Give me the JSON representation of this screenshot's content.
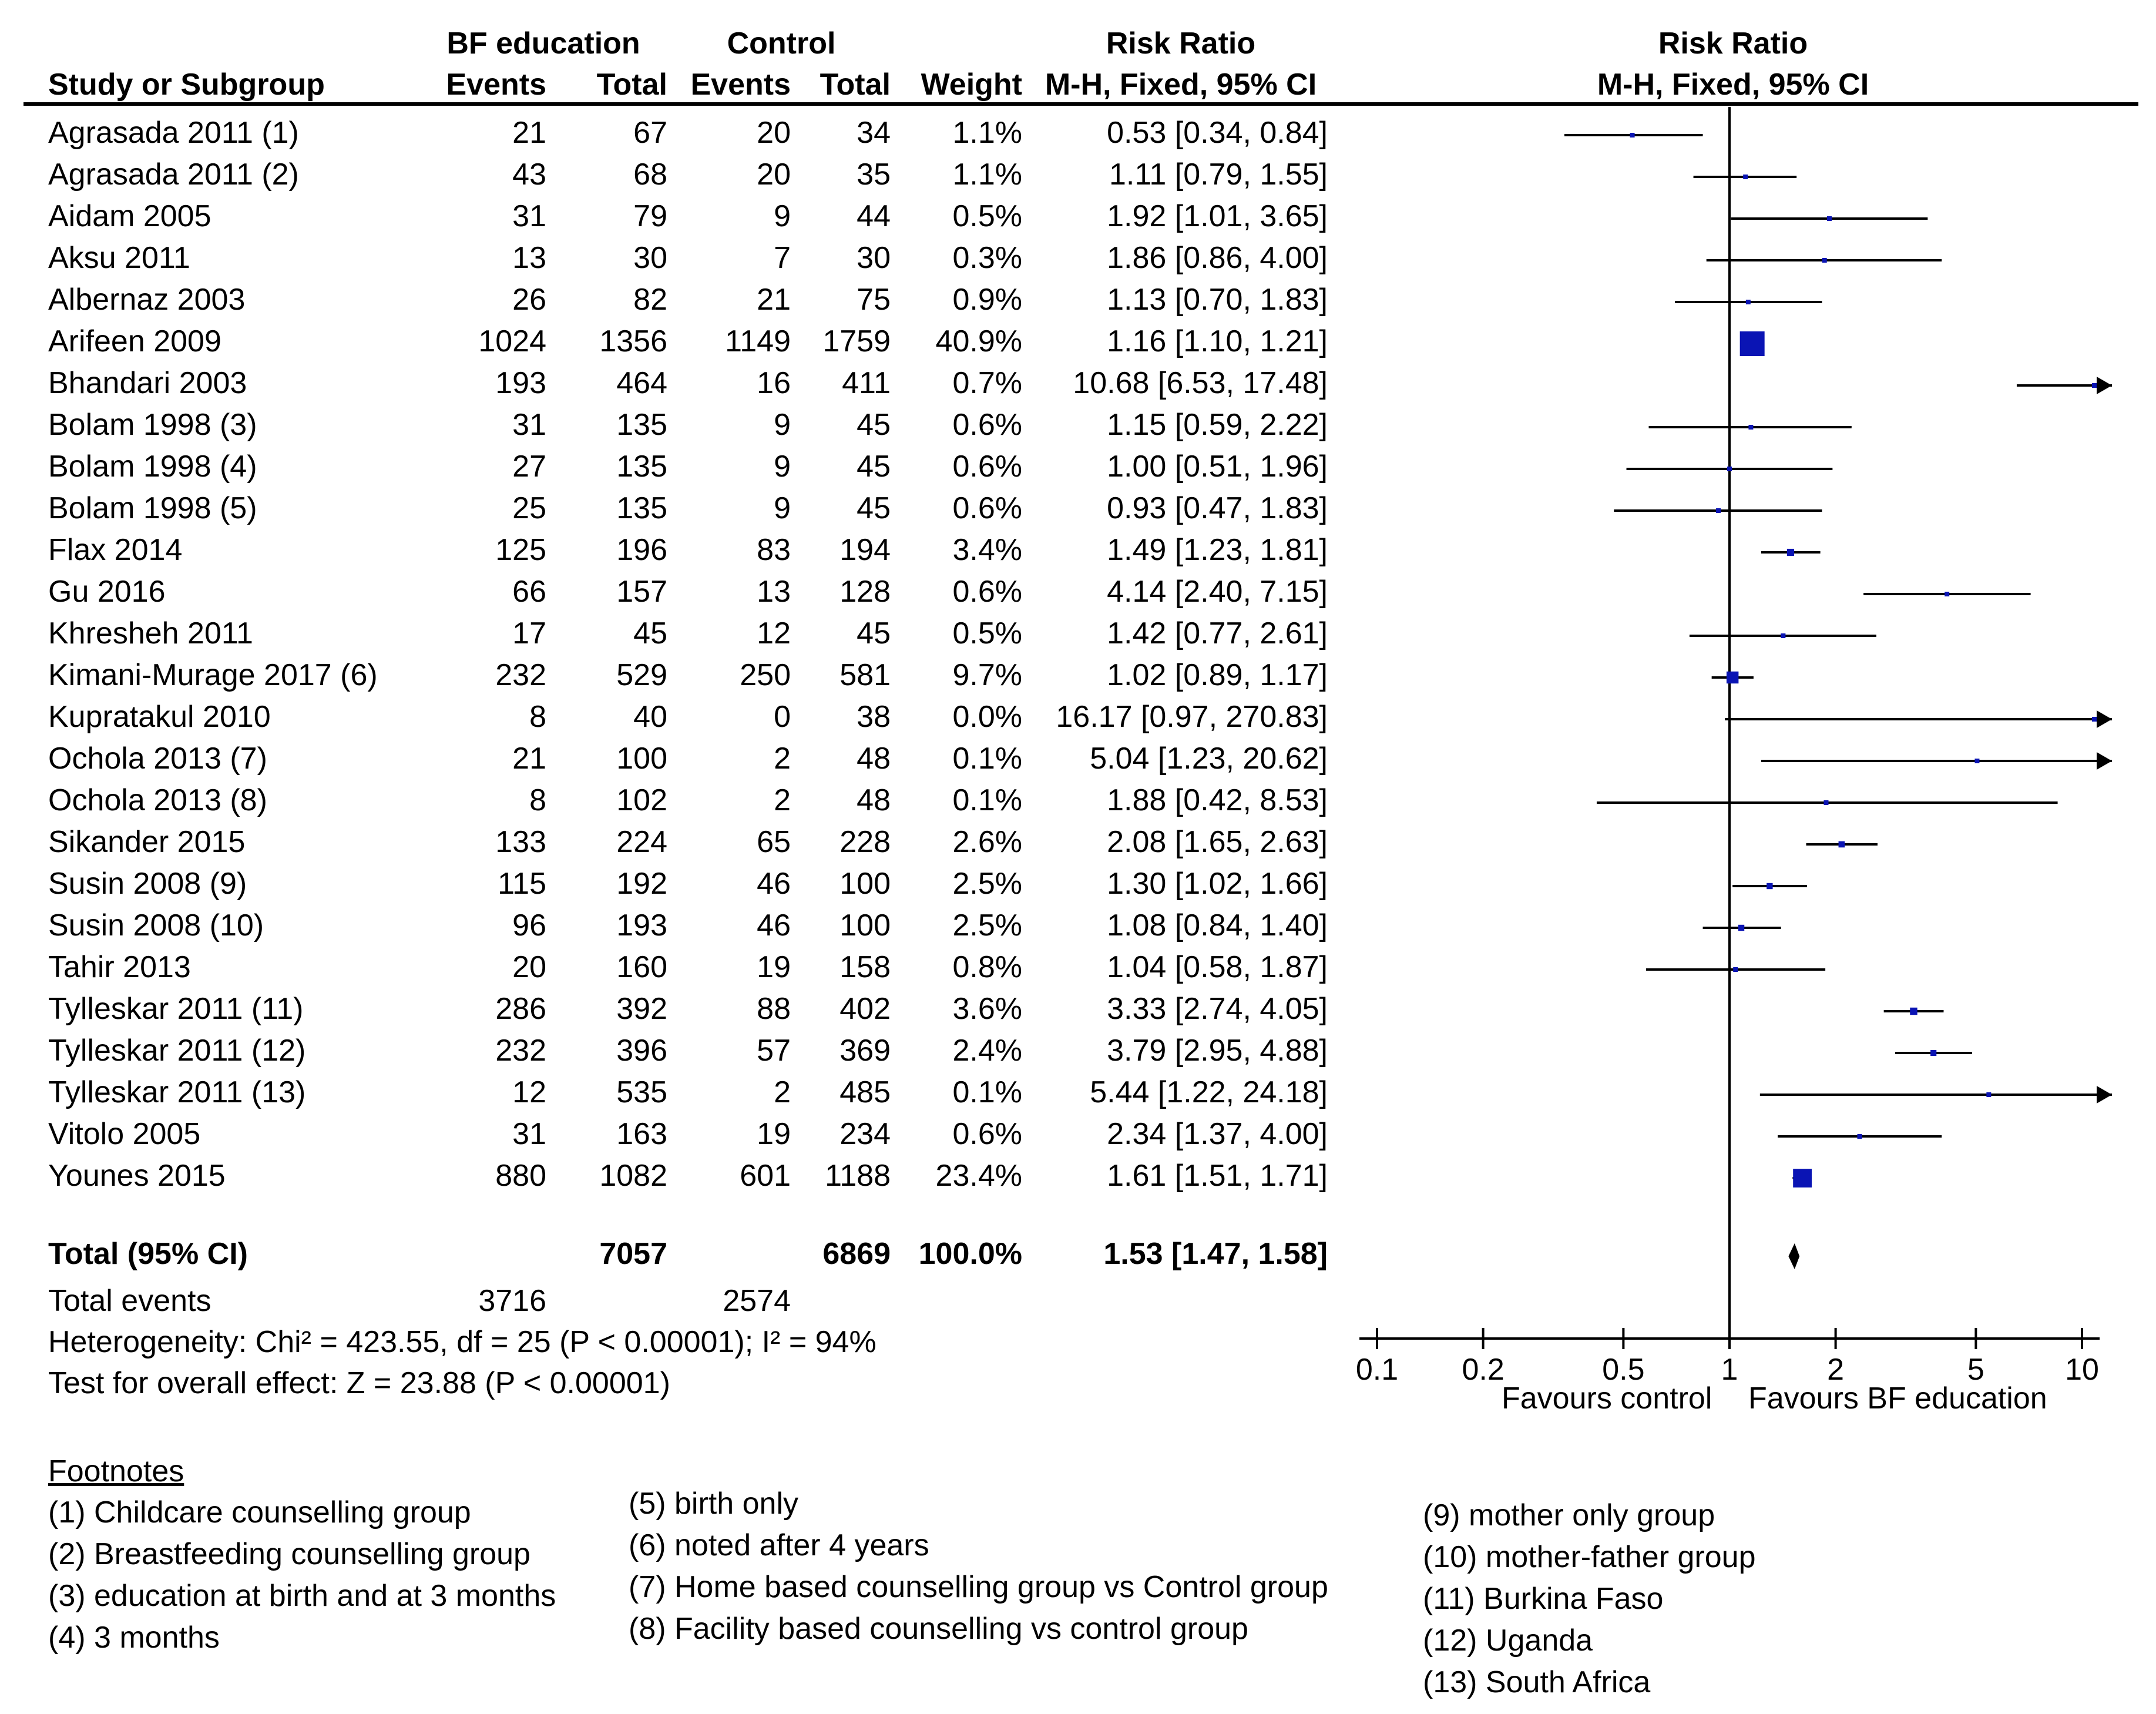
{
  "chart_data": {
    "type": "forest",
    "header": {
      "group1": "BF education",
      "group2": "Control",
      "study_col": "Study or Subgroup",
      "events": "Events",
      "total": "Total",
      "weight": "Weight",
      "effect_title": "Risk Ratio",
      "effect_method": "M-H, Fixed, 95% CI",
      "plot_title": "Risk Ratio",
      "plot_method": "M-H, Fixed, 95% CI"
    },
    "studies": [
      {
        "name": "Agrasada 2011 (1)",
        "e1": "21",
        "n1": "67",
        "e2": "20",
        "n2": "34",
        "weight": "1.1%",
        "ci_text": "0.53 [0.34, 0.84]",
        "rr": 0.53,
        "lo": 0.34,
        "hi": 0.84,
        "w": 1.1
      },
      {
        "name": "Agrasada 2011 (2)",
        "e1": "43",
        "n1": "68",
        "e2": "20",
        "n2": "35",
        "weight": "1.1%",
        "ci_text": "1.11 [0.79, 1.55]",
        "rr": 1.11,
        "lo": 0.79,
        "hi": 1.55,
        "w": 1.1
      },
      {
        "name": "Aidam 2005",
        "e1": "31",
        "n1": "79",
        "e2": "9",
        "n2": "44",
        "weight": "0.5%",
        "ci_text": "1.92 [1.01, 3.65]",
        "rr": 1.92,
        "lo": 1.01,
        "hi": 3.65,
        "w": 0.5
      },
      {
        "name": "Aksu 2011",
        "e1": "13",
        "n1": "30",
        "e2": "7",
        "n2": "30",
        "weight": "0.3%",
        "ci_text": "1.86 [0.86, 4.00]",
        "rr": 1.86,
        "lo": 0.86,
        "hi": 4.0,
        "w": 0.3
      },
      {
        "name": "Albernaz 2003",
        "e1": "26",
        "n1": "82",
        "e2": "21",
        "n2": "75",
        "weight": "0.9%",
        "ci_text": "1.13 [0.70, 1.83]",
        "rr": 1.13,
        "lo": 0.7,
        "hi": 1.83,
        "w": 0.9
      },
      {
        "name": "Arifeen 2009",
        "e1": "1024",
        "n1": "1356",
        "e2": "1149",
        "n2": "1759",
        "weight": "40.9%",
        "ci_text": "1.16 [1.10, 1.21]",
        "rr": 1.16,
        "lo": 1.1,
        "hi": 1.21,
        "w": 40.9
      },
      {
        "name": "Bhandari 2003",
        "e1": "193",
        "n1": "464",
        "e2": "16",
        "n2": "411",
        "weight": "0.7%",
        "ci_text": "10.68 [6.53, 17.48]",
        "rr": 10.68,
        "lo": 6.53,
        "hi": 17.48,
        "w": 0.7
      },
      {
        "name": "Bolam 1998 (3)",
        "e1": "31",
        "n1": "135",
        "e2": "9",
        "n2": "45",
        "weight": "0.6%",
        "ci_text": "1.15 [0.59, 2.22]",
        "rr": 1.15,
        "lo": 0.59,
        "hi": 2.22,
        "w": 0.6
      },
      {
        "name": "Bolam 1998 (4)",
        "e1": "27",
        "n1": "135",
        "e2": "9",
        "n2": "45",
        "weight": "0.6%",
        "ci_text": "1.00 [0.51, 1.96]",
        "rr": 1.0,
        "lo": 0.51,
        "hi": 1.96,
        "w": 0.6
      },
      {
        "name": "Bolam 1998 (5)",
        "e1": "25",
        "n1": "135",
        "e2": "9",
        "n2": "45",
        "weight": "0.6%",
        "ci_text": "0.93 [0.47, 1.83]",
        "rr": 0.93,
        "lo": 0.47,
        "hi": 1.83,
        "w": 0.6
      },
      {
        "name": "Flax 2014",
        "e1": "125",
        "n1": "196",
        "e2": "83",
        "n2": "194",
        "weight": "3.4%",
        "ci_text": "1.49 [1.23, 1.81]",
        "rr": 1.49,
        "lo": 1.23,
        "hi": 1.81,
        "w": 3.4
      },
      {
        "name": "Gu 2016",
        "e1": "66",
        "n1": "157",
        "e2": "13",
        "n2": "128",
        "weight": "0.6%",
        "ci_text": "4.14 [2.40, 7.15]",
        "rr": 4.14,
        "lo": 2.4,
        "hi": 7.15,
        "w": 0.6
      },
      {
        "name": "Khresheh 2011",
        "e1": "17",
        "n1": "45",
        "e2": "12",
        "n2": "45",
        "weight": "0.5%",
        "ci_text": "1.42 [0.77, 2.61]",
        "rr": 1.42,
        "lo": 0.77,
        "hi": 2.61,
        "w": 0.5
      },
      {
        "name": "Kimani-Murage 2017 (6)",
        "e1": "232",
        "n1": "529",
        "e2": "250",
        "n2": "581",
        "weight": "9.7%",
        "ci_text": "1.02 [0.89, 1.17]",
        "rr": 1.02,
        "lo": 0.89,
        "hi": 1.17,
        "w": 9.7
      },
      {
        "name": "Kupratakul 2010",
        "e1": "8",
        "n1": "40",
        "e2": "0",
        "n2": "38",
        "weight": "0.0%",
        "ci_text": "16.17 [0.97, 270.83]",
        "rr": 16.17,
        "lo": 0.97,
        "hi": 270.83,
        "w": 0.0
      },
      {
        "name": "Ochola 2013 (7)",
        "e1": "21",
        "n1": "100",
        "e2": "2",
        "n2": "48",
        "weight": "0.1%",
        "ci_text": "5.04 [1.23, 20.62]",
        "rr": 5.04,
        "lo": 1.23,
        "hi": 20.62,
        "w": 0.1
      },
      {
        "name": "Ochola 2013 (8)",
        "e1": "8",
        "n1": "102",
        "e2": "2",
        "n2": "48",
        "weight": "0.1%",
        "ci_text": "1.88 [0.42, 8.53]",
        "rr": 1.88,
        "lo": 0.42,
        "hi": 8.53,
        "w": 0.1
      },
      {
        "name": "Sikander 2015",
        "e1": "133",
        "n1": "224",
        "e2": "65",
        "n2": "228",
        "weight": "2.6%",
        "ci_text": "2.08 [1.65, 2.63]",
        "rr": 2.08,
        "lo": 1.65,
        "hi": 2.63,
        "w": 2.6
      },
      {
        "name": "Susin 2008 (9)",
        "e1": "115",
        "n1": "192",
        "e2": "46",
        "n2": "100",
        "weight": "2.5%",
        "ci_text": "1.30 [1.02, 1.66]",
        "rr": 1.3,
        "lo": 1.02,
        "hi": 1.66,
        "w": 2.5
      },
      {
        "name": "Susin 2008 (10)",
        "e1": "96",
        "n1": "193",
        "e2": "46",
        "n2": "100",
        "weight": "2.5%",
        "ci_text": "1.08 [0.84, 1.40]",
        "rr": 1.08,
        "lo": 0.84,
        "hi": 1.4,
        "w": 2.5
      },
      {
        "name": "Tahir 2013",
        "e1": "20",
        "n1": "160",
        "e2": "19",
        "n2": "158",
        "weight": "0.8%",
        "ci_text": "1.04 [0.58, 1.87]",
        "rr": 1.04,
        "lo": 0.58,
        "hi": 1.87,
        "w": 0.8
      },
      {
        "name": "Tylleskar 2011 (11)",
        "e1": "286",
        "n1": "392",
        "e2": "88",
        "n2": "402",
        "weight": "3.6%",
        "ci_text": "3.33 [2.74, 4.05]",
        "rr": 3.33,
        "lo": 2.74,
        "hi": 4.05,
        "w": 3.6
      },
      {
        "name": "Tylleskar 2011 (12)",
        "e1": "232",
        "n1": "396",
        "e2": "57",
        "n2": "369",
        "weight": "2.4%",
        "ci_text": "3.79 [2.95, 4.88]",
        "rr": 3.79,
        "lo": 2.95,
        "hi": 4.88,
        "w": 2.4
      },
      {
        "name": "Tylleskar 2011 (13)",
        "e1": "12",
        "n1": "535",
        "e2": "2",
        "n2": "485",
        "weight": "0.1%",
        "ci_text": "5.44 [1.22, 24.18]",
        "rr": 5.44,
        "lo": 1.22,
        "hi": 24.18,
        "w": 0.1
      },
      {
        "name": "Vitolo 2005",
        "e1": "31",
        "n1": "163",
        "e2": "19",
        "n2": "234",
        "weight": "0.6%",
        "ci_text": "2.34 [1.37, 4.00]",
        "rr": 2.34,
        "lo": 1.37,
        "hi": 4.0,
        "w": 0.6
      },
      {
        "name": "Younes 2015",
        "e1": "880",
        "n1": "1082",
        "e2": "601",
        "n2": "1188",
        "weight": "23.4%",
        "ci_text": "1.61 [1.51, 1.71]",
        "rr": 1.61,
        "lo": 1.51,
        "hi": 1.71,
        "w": 23.4
      }
    ],
    "total": {
      "label": "Total (95% CI)",
      "n1": "7057",
      "n2": "6869",
      "weight": "100.0%",
      "ci_text": "1.53 [1.47, 1.58]",
      "rr": 1.53,
      "lo": 1.47,
      "hi": 1.58
    },
    "total_events": {
      "label": "Total events",
      "e1": "3716",
      "e2": "2574"
    },
    "heterogeneity": "Heterogeneity: Chi² = 423.55, df = 25 (P < 0.00001); I² = 94%",
    "overall_test": "Test for overall effect: Z = 23.88 (P < 0.00001)",
    "x_axis": {
      "scale": "log",
      "range": [
        0.1,
        10
      ],
      "ticks": [
        0.1,
        0.2,
        0.5,
        1,
        2,
        5,
        10
      ],
      "tick_labels": [
        "0.1",
        "0.2",
        "0.5",
        "1",
        "2",
        "5",
        "10"
      ],
      "left_label": "Favours control",
      "right_label": "Favours BF education"
    },
    "colors": {
      "marker": "#0a14b4",
      "line": "#000000"
    }
  },
  "footnotes": {
    "title": "Footnotes",
    "col1": [
      "(1) Childcare counselling group",
      "(2) Breastfeeding counselling group",
      "(3) education at birth and at 3 months",
      "(4) 3 months"
    ],
    "col2": [
      "(5) birth only",
      "(6) noted after 4 years",
      "(7) Home based counselling group vs Control group",
      "(8) Facility based counselling vs control group"
    ],
    "col3": [
      "(9) mother only group",
      "(10) mother-father group",
      "(11) Burkina Faso",
      "(12) Uganda",
      "(13) South Africa"
    ]
  }
}
